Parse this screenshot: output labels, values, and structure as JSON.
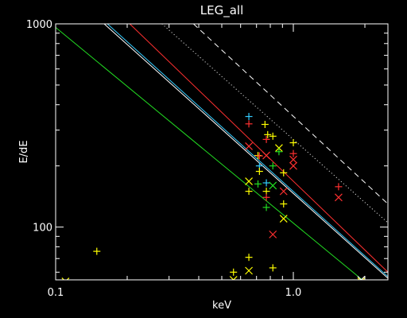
{
  "chart_data": {
    "type": "scatter",
    "title": "LEG_all",
    "xlabel": "keV",
    "ylabel": "E/dE",
    "xscale": "log",
    "yscale": "log",
    "xlim": [
      0.1,
      2.5
    ],
    "ylim": [
      55,
      1000
    ],
    "grid": false,
    "xticks": [
      {
        "v": 0.1,
        "label": "0.1"
      },
      {
        "v": 1.0,
        "label": "1.0"
      }
    ],
    "yticks": [
      {
        "v": 100,
        "label": "100"
      },
      {
        "v": 1000,
        "label": "1000"
      }
    ],
    "colors": {
      "yellow": "#ffff00",
      "red": "#ff3030",
      "green": "#22dd22",
      "cyan": "#33ccff",
      "white": "#ffffff"
    },
    "lines": [
      {
        "color": "#ffffff",
        "style": "dashed",
        "x": [
          0.38,
          2.5
        ],
        "y": [
          1000,
          130
        ]
      },
      {
        "color": "#ffffff",
        "style": "dotted",
        "x": [
          0.28,
          2.5
        ],
        "y": [
          1000,
          105
        ]
      },
      {
        "color": "#ff3030",
        "style": "solid",
        "x": [
          0.205,
          2.5
        ],
        "y": [
          1000,
          60
        ]
      },
      {
        "color": "#33ccff",
        "style": "solid",
        "x": [
          0.165,
          2.5
        ],
        "y": [
          1000,
          57
        ]
      },
      {
        "color": "#ffffff",
        "style": "solid",
        "x": [
          0.16,
          2.5
        ],
        "y": [
          1000,
          56
        ]
      },
      {
        "color": "#22dd22",
        "style": "solid",
        "x": [
          0.1,
          1.95
        ],
        "y": [
          960,
          55
        ]
      }
    ],
    "points": [
      {
        "x": 0.149,
        "y": 76,
        "m": "plus",
        "c": "yellow"
      },
      {
        "x": 0.11,
        "y": 54,
        "m": "x",
        "c": "yellow"
      },
      {
        "x": 0.56,
        "y": 60,
        "m": "plus",
        "c": "yellow"
      },
      {
        "x": 0.56,
        "y": 55,
        "m": "x",
        "c": "yellow"
      },
      {
        "x": 0.65,
        "y": 71,
        "m": "plus",
        "c": "yellow"
      },
      {
        "x": 0.65,
        "y": 61,
        "m": "x",
        "c": "yellow"
      },
      {
        "x": 0.82,
        "y": 63,
        "m": "plus",
        "c": "yellow"
      },
      {
        "x": 0.82,
        "y": 92,
        "m": "x",
        "c": "red"
      },
      {
        "x": 0.65,
        "y": 350,
        "m": "plus",
        "c": "cyan"
      },
      {
        "x": 0.65,
        "y": 322,
        "m": "plus",
        "c": "red"
      },
      {
        "x": 0.65,
        "y": 250,
        "m": "x",
        "c": "red"
      },
      {
        "x": 0.65,
        "y": 168,
        "m": "x",
        "c": "yellow"
      },
      {
        "x": 0.65,
        "y": 150,
        "m": "plus",
        "c": "yellow"
      },
      {
        "x": 0.71,
        "y": 225,
        "m": "plus",
        "c": "yellow"
      },
      {
        "x": 0.72,
        "y": 224,
        "m": "plus",
        "c": "red"
      },
      {
        "x": 0.72,
        "y": 200,
        "m": "plus",
        "c": "cyan"
      },
      {
        "x": 0.72,
        "y": 188,
        "m": "plus",
        "c": "yellow"
      },
      {
        "x": 0.71,
        "y": 163,
        "m": "plus",
        "c": "green"
      },
      {
        "x": 0.76,
        "y": 320,
        "m": "plus",
        "c": "yellow"
      },
      {
        "x": 0.78,
        "y": 285,
        "m": "plus",
        "c": "yellow"
      },
      {
        "x": 0.77,
        "y": 270,
        "m": "plus",
        "c": "red"
      },
      {
        "x": 0.77,
        "y": 225,
        "m": "x",
        "c": "red"
      },
      {
        "x": 0.77,
        "y": 165,
        "m": "plus",
        "c": "cyan"
      },
      {
        "x": 0.77,
        "y": 150,
        "m": "plus",
        "c": "yellow"
      },
      {
        "x": 0.77,
        "y": 140,
        "m": "plus",
        "c": "red"
      },
      {
        "x": 0.77,
        "y": 125,
        "m": "plus",
        "c": "green"
      },
      {
        "x": 0.82,
        "y": 280,
        "m": "plus",
        "c": "yellow"
      },
      {
        "x": 0.82,
        "y": 200,
        "m": "plus",
        "c": "green"
      },
      {
        "x": 0.82,
        "y": 160,
        "m": "x",
        "c": "green"
      },
      {
        "x": 0.87,
        "y": 245,
        "m": "x",
        "c": "yellow"
      },
      {
        "x": 0.87,
        "y": 235,
        "m": "plus",
        "c": "green"
      },
      {
        "x": 0.91,
        "y": 185,
        "m": "plus",
        "c": "yellow"
      },
      {
        "x": 0.91,
        "y": 150,
        "m": "x",
        "c": "red"
      },
      {
        "x": 0.91,
        "y": 130,
        "m": "plus",
        "c": "yellow"
      },
      {
        "x": 0.91,
        "y": 110,
        "m": "x",
        "c": "yellow"
      },
      {
        "x": 1.0,
        "y": 260,
        "m": "plus",
        "c": "yellow"
      },
      {
        "x": 1.0,
        "y": 230,
        "m": "plus",
        "c": "red"
      },
      {
        "x": 1.0,
        "y": 215,
        "m": "x",
        "c": "red"
      },
      {
        "x": 1.0,
        "y": 200,
        "m": "x",
        "c": "red"
      },
      {
        "x": 1.55,
        "y": 158,
        "m": "plus",
        "c": "red"
      },
      {
        "x": 1.55,
        "y": 140,
        "m": "x",
        "c": "red"
      },
      {
        "x": 1.93,
        "y": 55,
        "m": "x",
        "c": "white"
      },
      {
        "x": 1.93,
        "y": 54,
        "m": "x",
        "c": "yellow"
      }
    ]
  }
}
